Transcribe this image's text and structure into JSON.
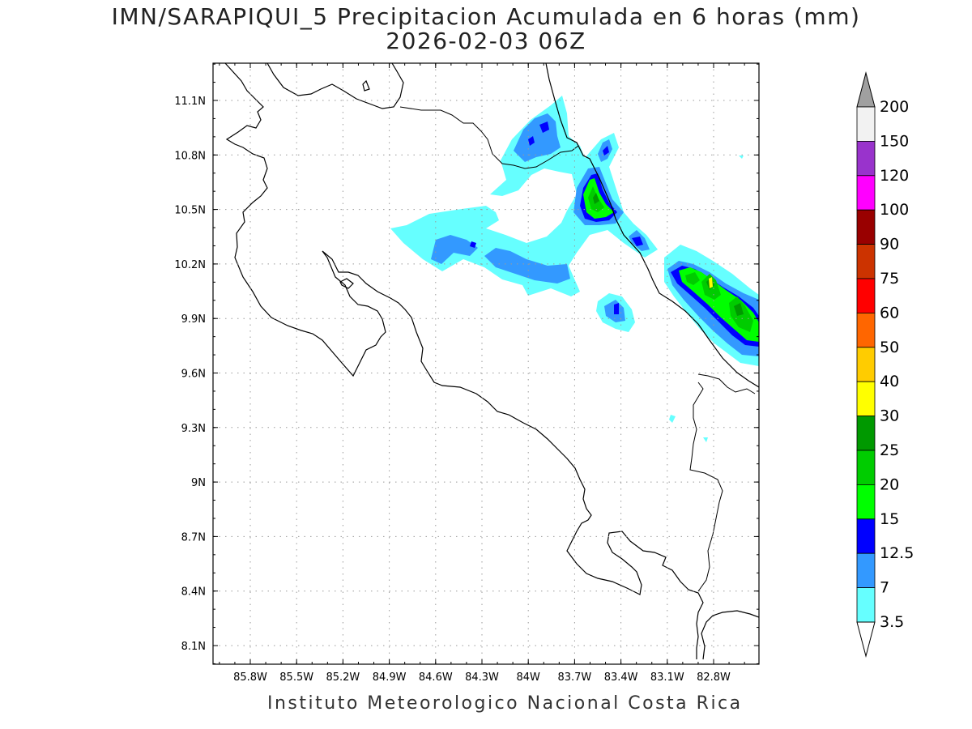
{
  "title": {
    "line1": "IMN/SARAPIQUI_5 Precipitacion Acumulada en 6 horas (mm)",
    "line2": "2026-02-03 06Z"
  },
  "footer": "Instituto Meteorologico Nacional Costa Rica",
  "map": {
    "lon_labels": [
      "85.8W",
      "85.5W",
      "85.2W",
      "84.9W",
      "84.6W",
      "84.3W",
      "84W",
      "83.7W",
      "83.4W",
      "83.1W",
      "82.8W"
    ],
    "lat_labels": [
      "11.1N",
      "10.8N",
      "10.5N",
      "10.2N",
      "9.9N",
      "9.6N",
      "9.3N",
      "9N",
      "8.7N",
      "8.4N",
      "8.1N"
    ],
    "grid": true
  },
  "legend": {
    "labels": [
      "200",
      "150",
      "120",
      "100",
      "90",
      "75",
      "60",
      "50",
      "40",
      "30",
      "25",
      "20",
      "15",
      "12.5",
      "7",
      "3.5"
    ],
    "colors": {
      "over": "#a0a0a0",
      "c150_200": "#f2f2f2",
      "c120_150": "#9933cc",
      "c100_120": "#ff00ff",
      "c90_100": "#990000",
      "c75_90": "#cc3300",
      "c60_75": "#ff0000",
      "c50_60": "#ff6600",
      "c40_50": "#ffcc00",
      "c30_40": "#ffff00",
      "c25_30": "#009900",
      "c20_25": "#00cc00",
      "c15_20": "#00ff00",
      "c12_15": "#0000ff",
      "c7_12": "#3399ff",
      "c3_7": "#66ffff"
    }
  }
}
